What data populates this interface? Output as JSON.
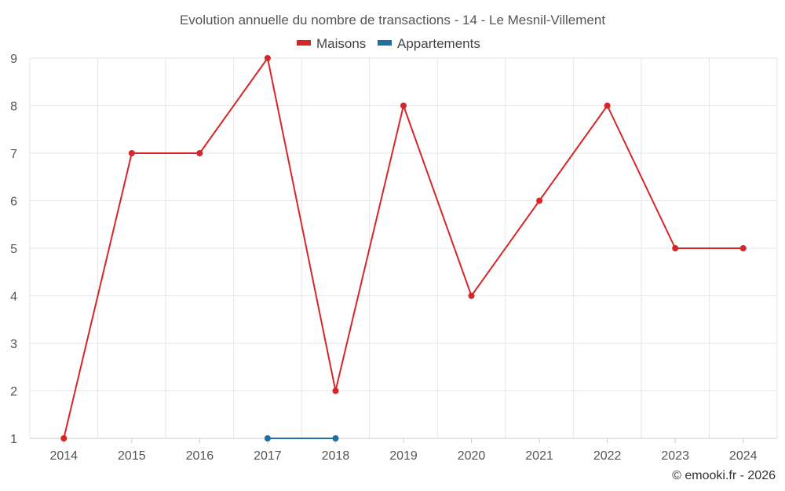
{
  "chart_data": {
    "type": "line",
    "title": "Evolution annuelle du nombre de transactions - 14 - Le Mesnil-Villement",
    "categories": [
      "2014",
      "2015",
      "2016",
      "2017",
      "2018",
      "2019",
      "2020",
      "2021",
      "2022",
      "2023",
      "2024"
    ],
    "series": [
      {
        "name": "Maisons",
        "color": "#d62728",
        "values": [
          1,
          7,
          7,
          9,
          2,
          8,
          4,
          6,
          8,
          5,
          5
        ]
      },
      {
        "name": "Appartements",
        "color": "#1f6fa3",
        "values": [
          null,
          null,
          null,
          1,
          1,
          null,
          null,
          null,
          null,
          null,
          null
        ]
      }
    ],
    "yticks": [
      1,
      2,
      3,
      4,
      5,
      6,
      7,
      8,
      9
    ],
    "ylim": [
      1,
      9
    ],
    "xlabel": "",
    "ylabel": "",
    "grid": true,
    "legend_position": "top-center"
  },
  "credit": "© emooki.fr - 2026"
}
